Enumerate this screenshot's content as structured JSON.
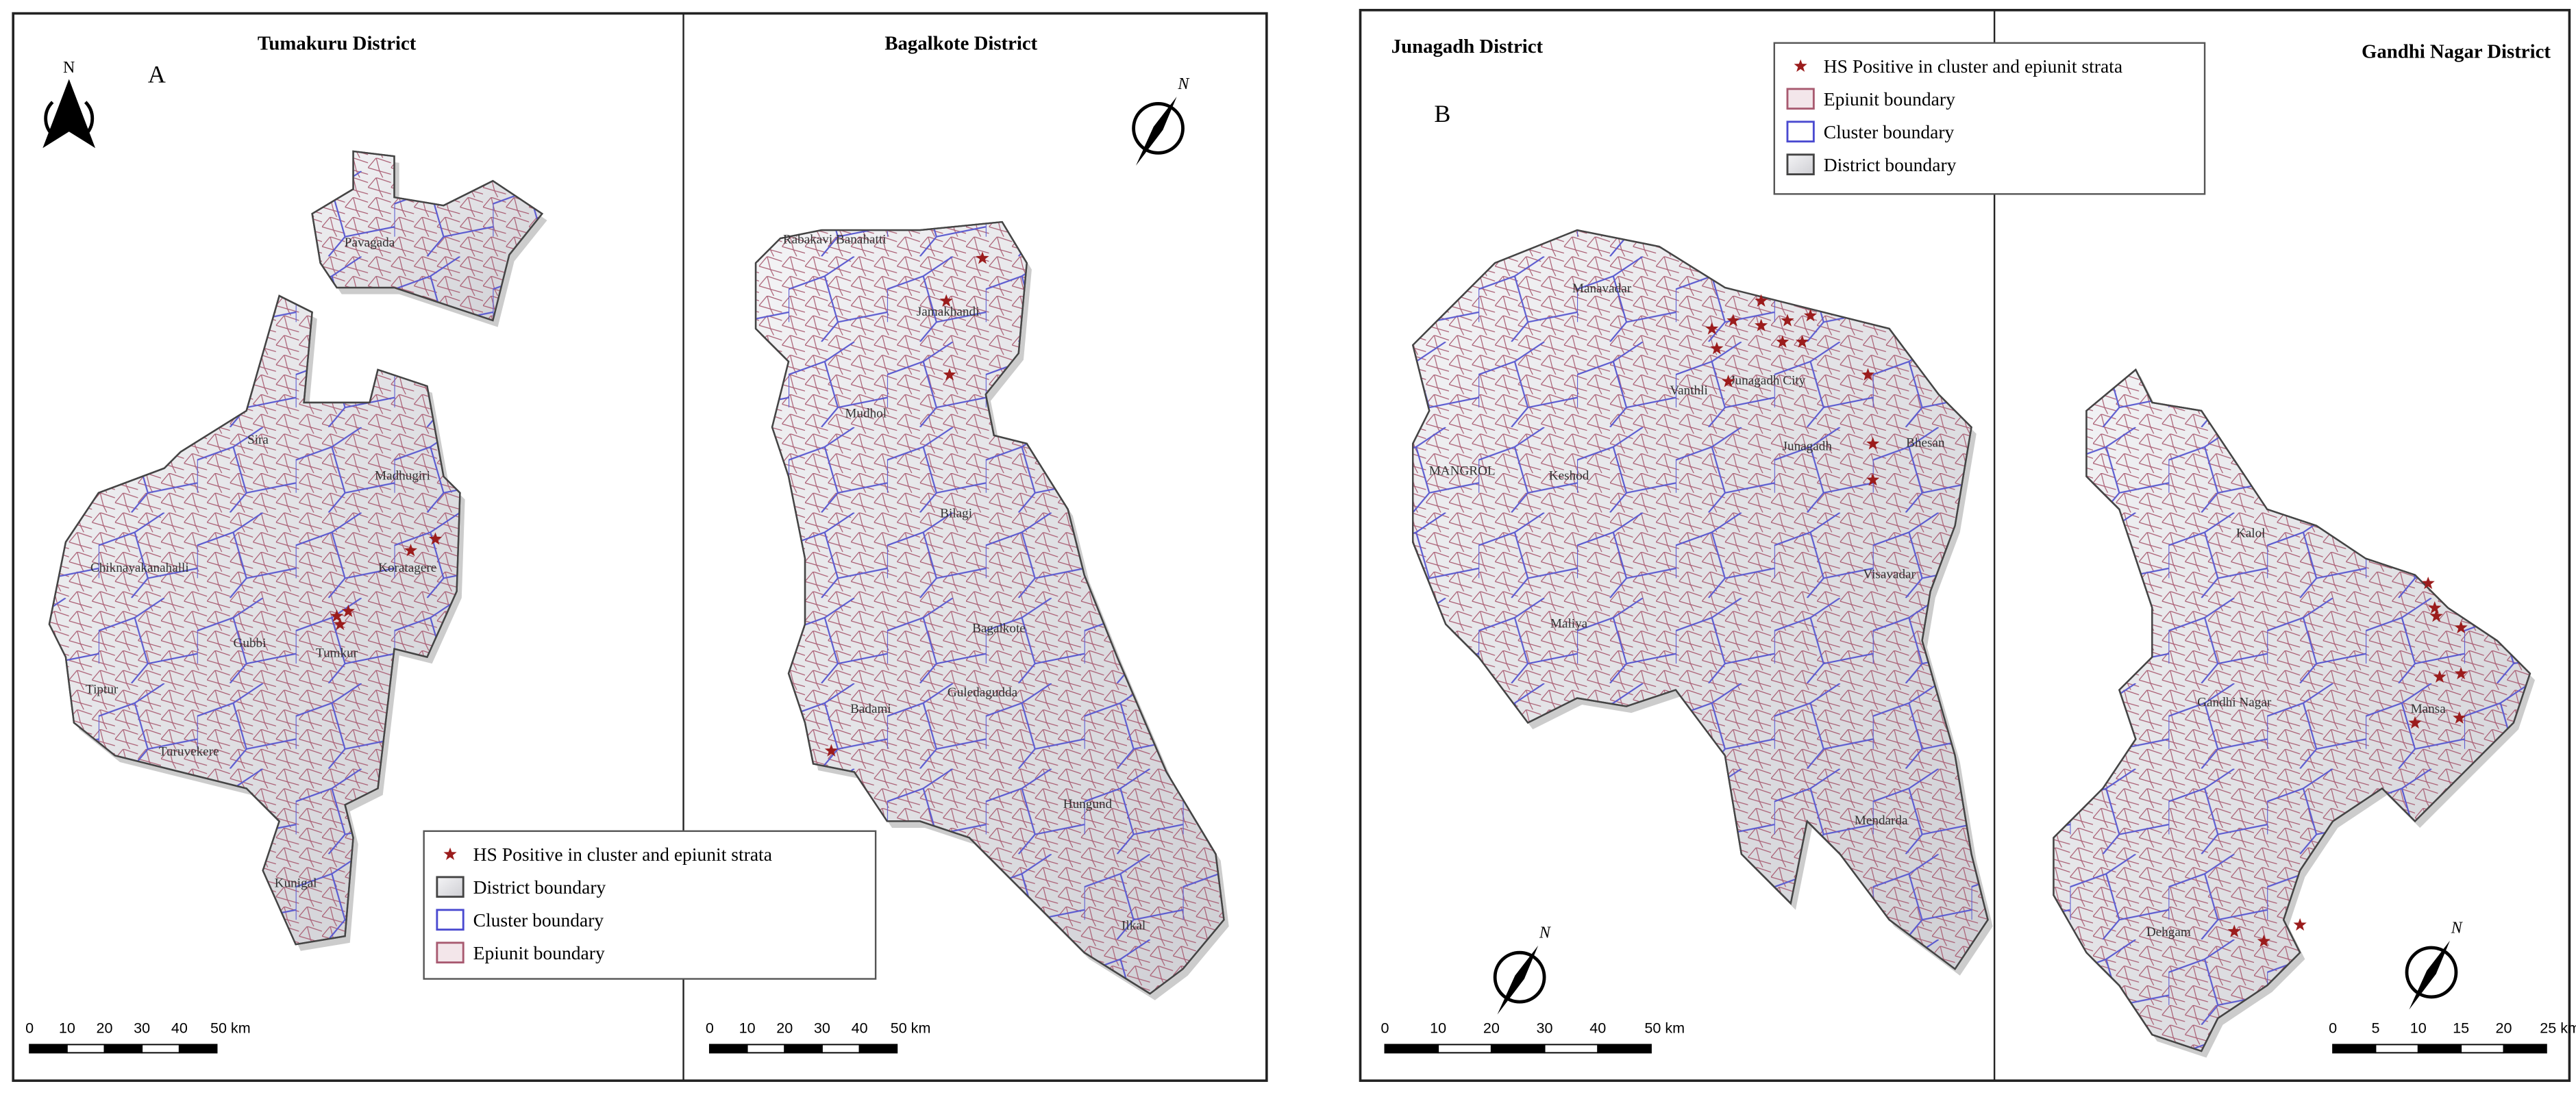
{
  "panels": [
    {
      "label": "A",
      "maps": [
        {
          "title": "Tumakuru District",
          "north_label": "N",
          "places": [
            "Pavagada",
            "Sira",
            "Madhugiri",
            "Koratagere",
            "Chiknayakanahalli",
            "Gubbi",
            "Tumkur",
            "Tiptur",
            "Turuvekere",
            "Kunigal"
          ],
          "scale_bar": [
            "0",
            "10",
            "20",
            "30",
            "40",
            "50 km"
          ]
        },
        {
          "title": "Bagalkote District",
          "north_label": "N",
          "places": [
            "Rabakavi Banahatti",
            "Jamakhandi",
            "Mudhol",
            "Bilagi",
            "Bagalkote",
            "Guledagudda",
            "Badami",
            "Hungund",
            "Ilkal"
          ],
          "scale_bar": [
            "0",
            "10",
            "20",
            "30",
            "40",
            "50 km"
          ]
        }
      ],
      "legend": [
        "HS Positive in cluster and epiunit strata",
        "District boundary",
        "Cluster boundary",
        "Epiunit boundary"
      ]
    },
    {
      "label": "B",
      "maps": [
        {
          "title": "Junagadh District",
          "north_label": "N",
          "places": [
            "Manavadar",
            "MANGROL",
            "Keshod",
            "Vanthli",
            "Junagadh City",
            "Junagadh",
            "Bhesan",
            "Visavadar",
            "Maliya",
            "Mendarda"
          ],
          "scale_bar": [
            "0",
            "10",
            "20",
            "30",
            "40",
            "50 km"
          ]
        },
        {
          "title": "Gandhi Nagar District",
          "north_label": "N",
          "places": [
            "Kalol",
            "Gandhi Nagar",
            "Mansa",
            "Dehgam"
          ],
          "scale_bar": [
            "0",
            "5",
            "10",
            "15",
            "20",
            "25 km"
          ]
        }
      ],
      "legend": [
        "HS Positive in cluster and epiunit strata",
        "Epiunit boundary",
        "Cluster boundary",
        "District boundary"
      ]
    }
  ]
}
